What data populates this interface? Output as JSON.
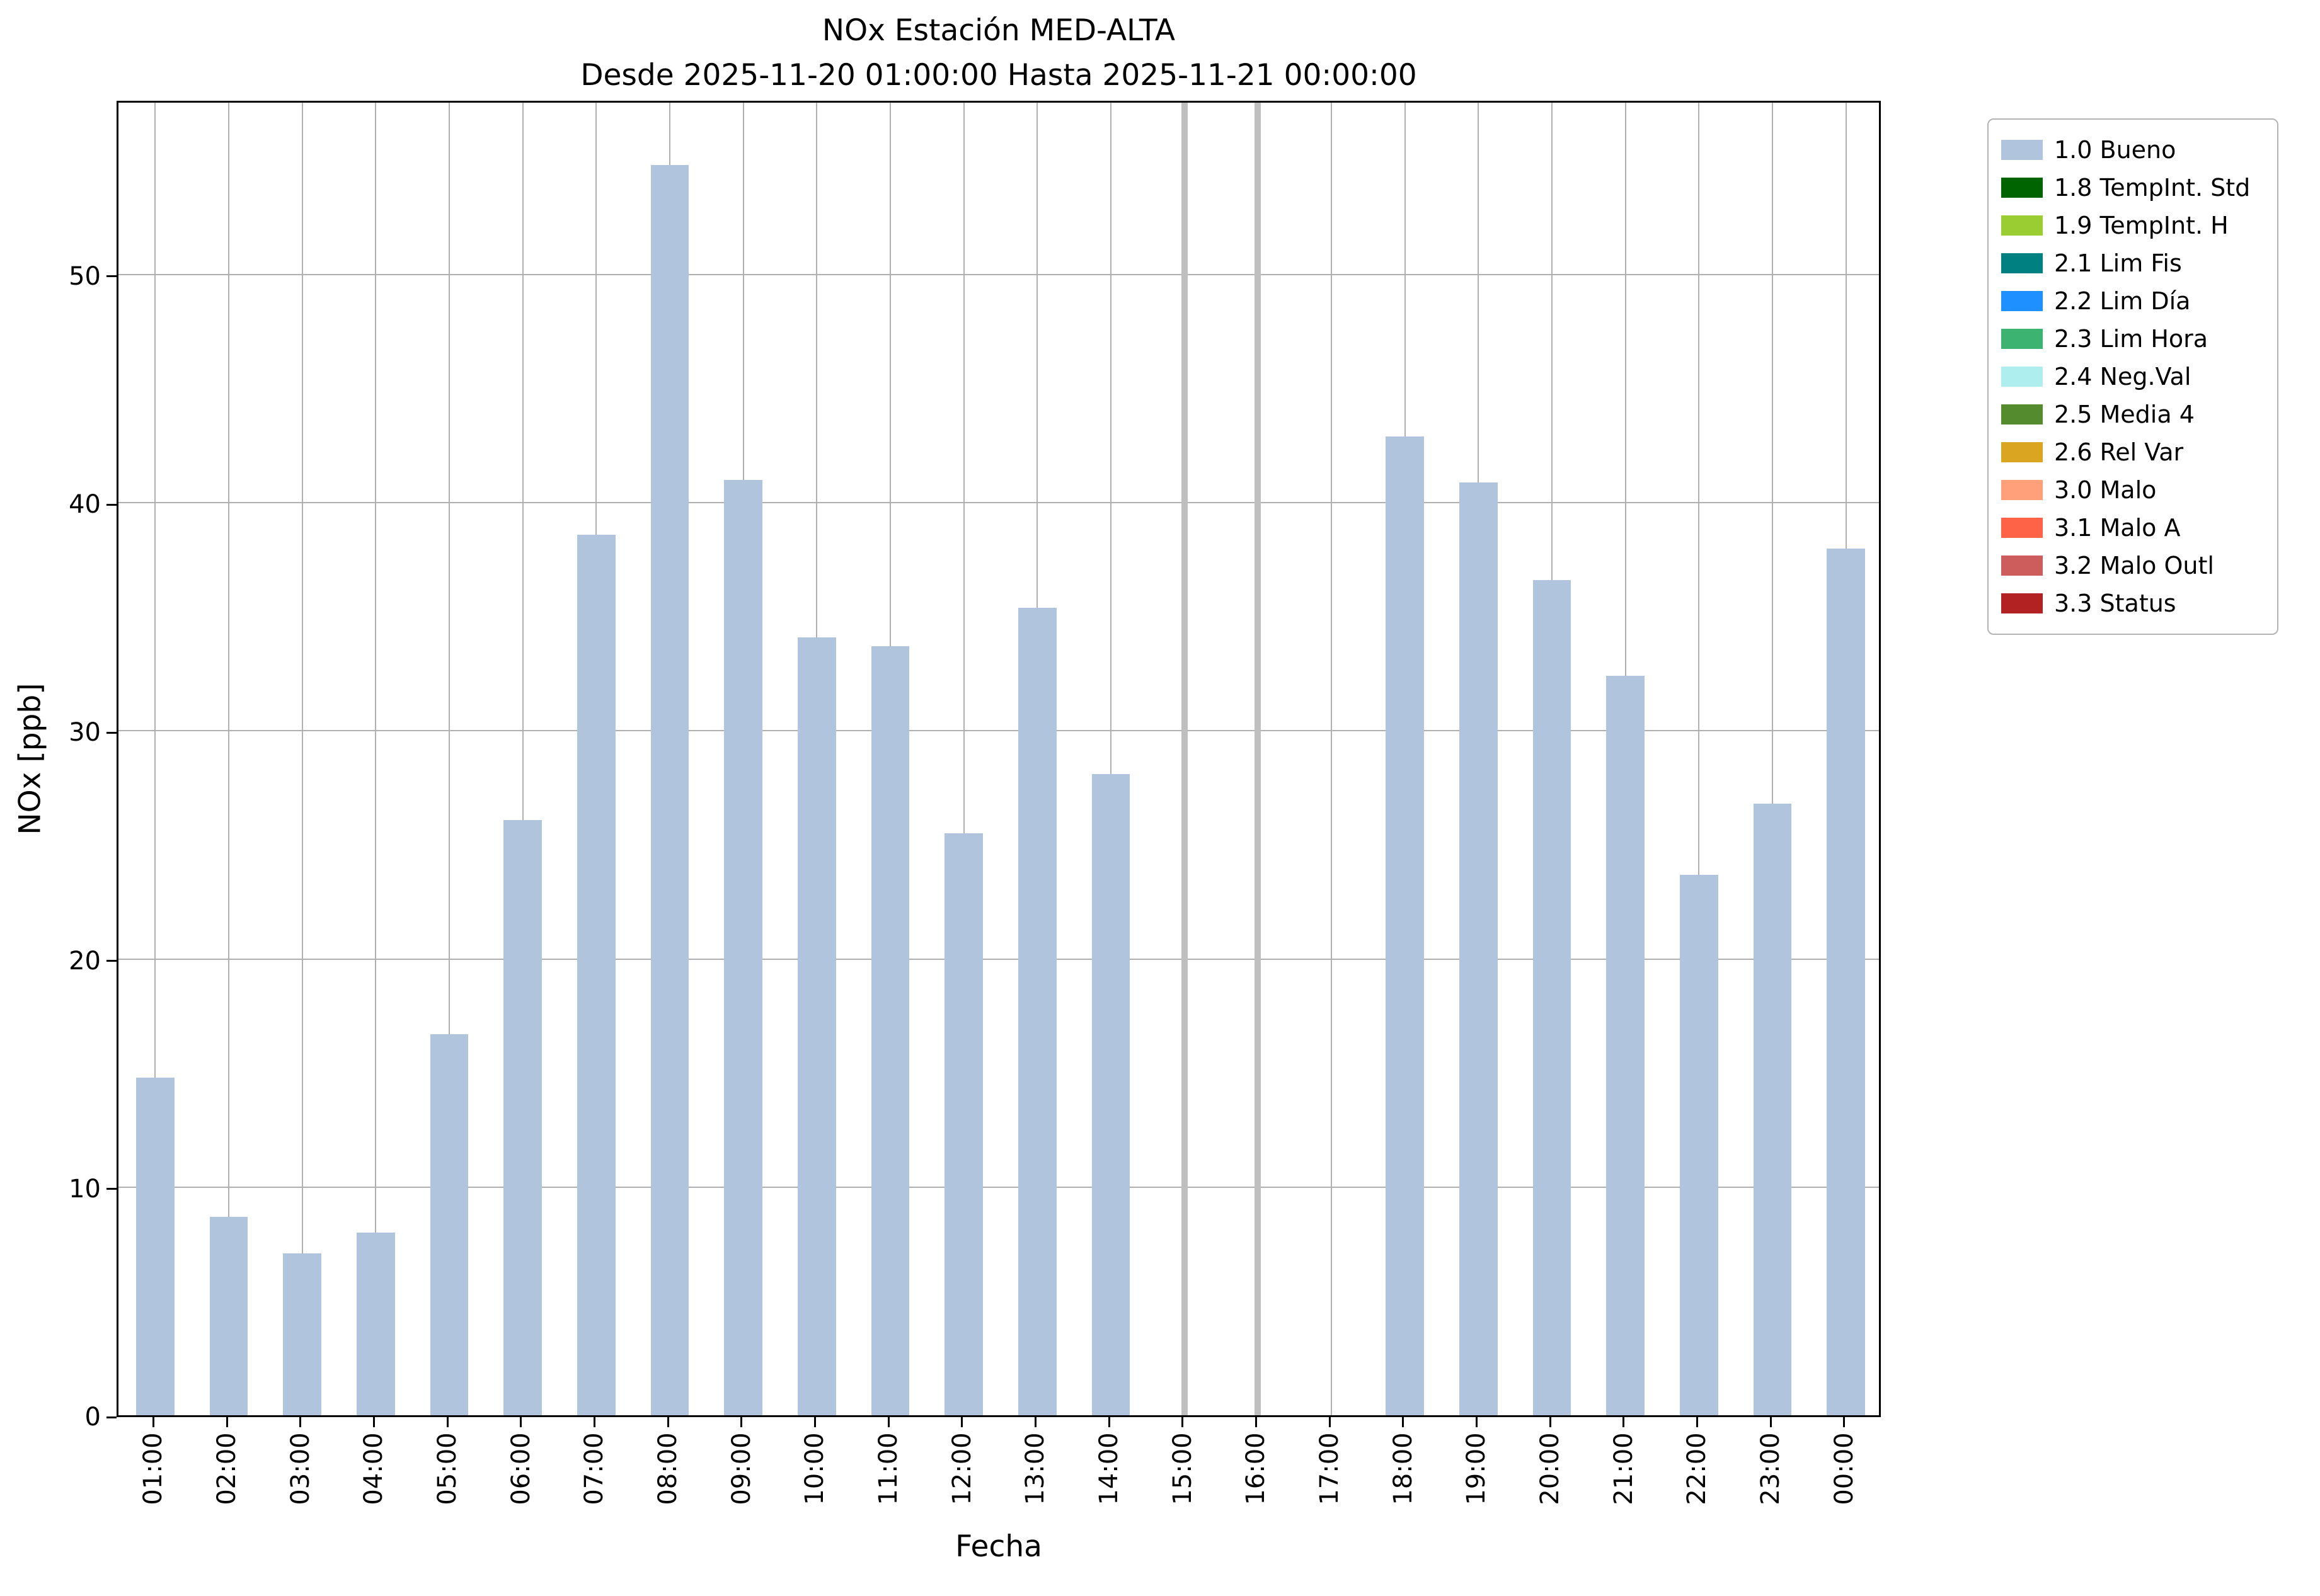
{
  "chart_data": {
    "type": "bar",
    "title": "NOx Estación MED-ALTA",
    "subtitle": "Desde 2025-11-20 01:00:00 Hasta 2025-11-21 00:00:00",
    "xlabel": "Fecha",
    "ylabel": "NOx [ppb]",
    "ylim": [
      0,
      57.7
    ],
    "yticks": [
      0,
      10,
      20,
      30,
      40,
      50
    ],
    "grid": true,
    "legend_position": "outside-right",
    "bar_color": "#b0c4de",
    "bar_width_frac": 0.52,
    "categories": [
      "01:00",
      "02:00",
      "03:00",
      "04:00",
      "05:00",
      "06:00",
      "07:00",
      "08:00",
      "09:00",
      "10:00",
      "11:00",
      "12:00",
      "13:00",
      "14:00",
      "15:00",
      "16:00",
      "17:00",
      "18:00",
      "19:00",
      "20:00",
      "21:00",
      "22:00",
      "23:00",
      "00:00"
    ],
    "values": [
      14.8,
      8.7,
      7.1,
      8.0,
      16.7,
      26.1,
      38.6,
      54.8,
      41.0,
      34.1,
      33.7,
      25.5,
      35.4,
      28.1,
      null,
      null,
      null,
      42.9,
      40.9,
      36.6,
      32.4,
      23.7,
      26.8,
      38.0
    ],
    "missing_markers": [
      "15:00",
      "16:00"
    ],
    "missing_marker_color": "#bfbfbf",
    "legend": [
      {
        "label": "1.0 Bueno",
        "color": "#b0c4de"
      },
      {
        "label": "1.8 TempInt. Std",
        "color": "#006400"
      },
      {
        "label": "1.9 TempInt. H",
        "color": "#9acd32"
      },
      {
        "label": "2.1 Lim Fis",
        "color": "#008080"
      },
      {
        "label": "2.2 Lim Día",
        "color": "#1e90ff"
      },
      {
        "label": "2.3 Lim Hora",
        "color": "#3cb371"
      },
      {
        "label": "2.4 Neg.Val",
        "color": "#afeeee"
      },
      {
        "label": "2.5 Media 4",
        "color": "#558b2f"
      },
      {
        "label": "2.6 Rel Var",
        "color": "#daa520"
      },
      {
        "label": "3.0 Malo",
        "color": "#ffa07a"
      },
      {
        "label": "3.1 Malo A",
        "color": "#ff6347"
      },
      {
        "label": "3.2 Malo Outl",
        "color": "#cd5c5c"
      },
      {
        "label": "3.3 Status",
        "color": "#b22222"
      }
    ]
  }
}
